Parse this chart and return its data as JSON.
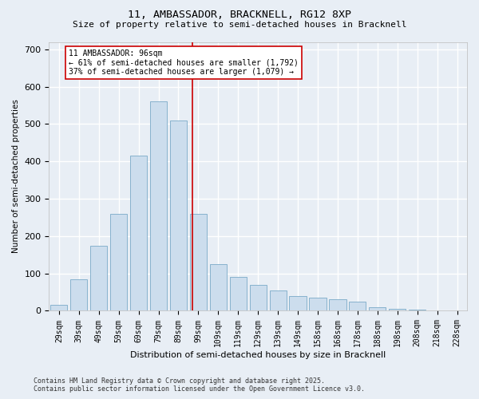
{
  "title_line1": "11, AMBASSADOR, BRACKNELL, RG12 8XP",
  "title_line2": "Size of property relative to semi-detached houses in Bracknell",
  "xlabel": "Distribution of semi-detached houses by size in Bracknell",
  "ylabel": "Number of semi-detached properties",
  "bar_labels": [
    "29sqm",
    "39sqm",
    "49sqm",
    "59sqm",
    "69sqm",
    "79sqm",
    "89sqm",
    "99sqm",
    "109sqm",
    "119sqm",
    "129sqm",
    "139sqm",
    "149sqm",
    "158sqm",
    "168sqm",
    "178sqm",
    "188sqm",
    "198sqm",
    "208sqm",
    "218sqm",
    "228sqm"
  ],
  "bar_values": [
    15,
    85,
    175,
    260,
    415,
    560,
    510,
    260,
    125,
    90,
    70,
    55,
    40,
    35,
    30,
    25,
    10,
    5,
    3,
    2,
    1
  ],
  "bar_color": "#ccdded",
  "bar_edge_color": "#7aaac8",
  "background_color": "#e8eef5",
  "grid_color": "#ffffff",
  "red_line_x": 6.7,
  "annotation_title": "11 AMBASSADOR: 96sqm",
  "annotation_line1": "← 61% of semi-detached houses are smaller (1,792)",
  "annotation_line2": "37% of semi-detached houses are larger (1,079) →",
  "annotation_box_color": "#ffffff",
  "annotation_border_color": "#cc0000",
  "red_line_color": "#cc0000",
  "ylim": [
    0,
    720
  ],
  "yticks": [
    0,
    100,
    200,
    300,
    400,
    500,
    600,
    700
  ],
  "footnote_line1": "Contains HM Land Registry data © Crown copyright and database right 2025.",
  "footnote_line2": "Contains public sector information licensed under the Open Government Licence v3.0."
}
